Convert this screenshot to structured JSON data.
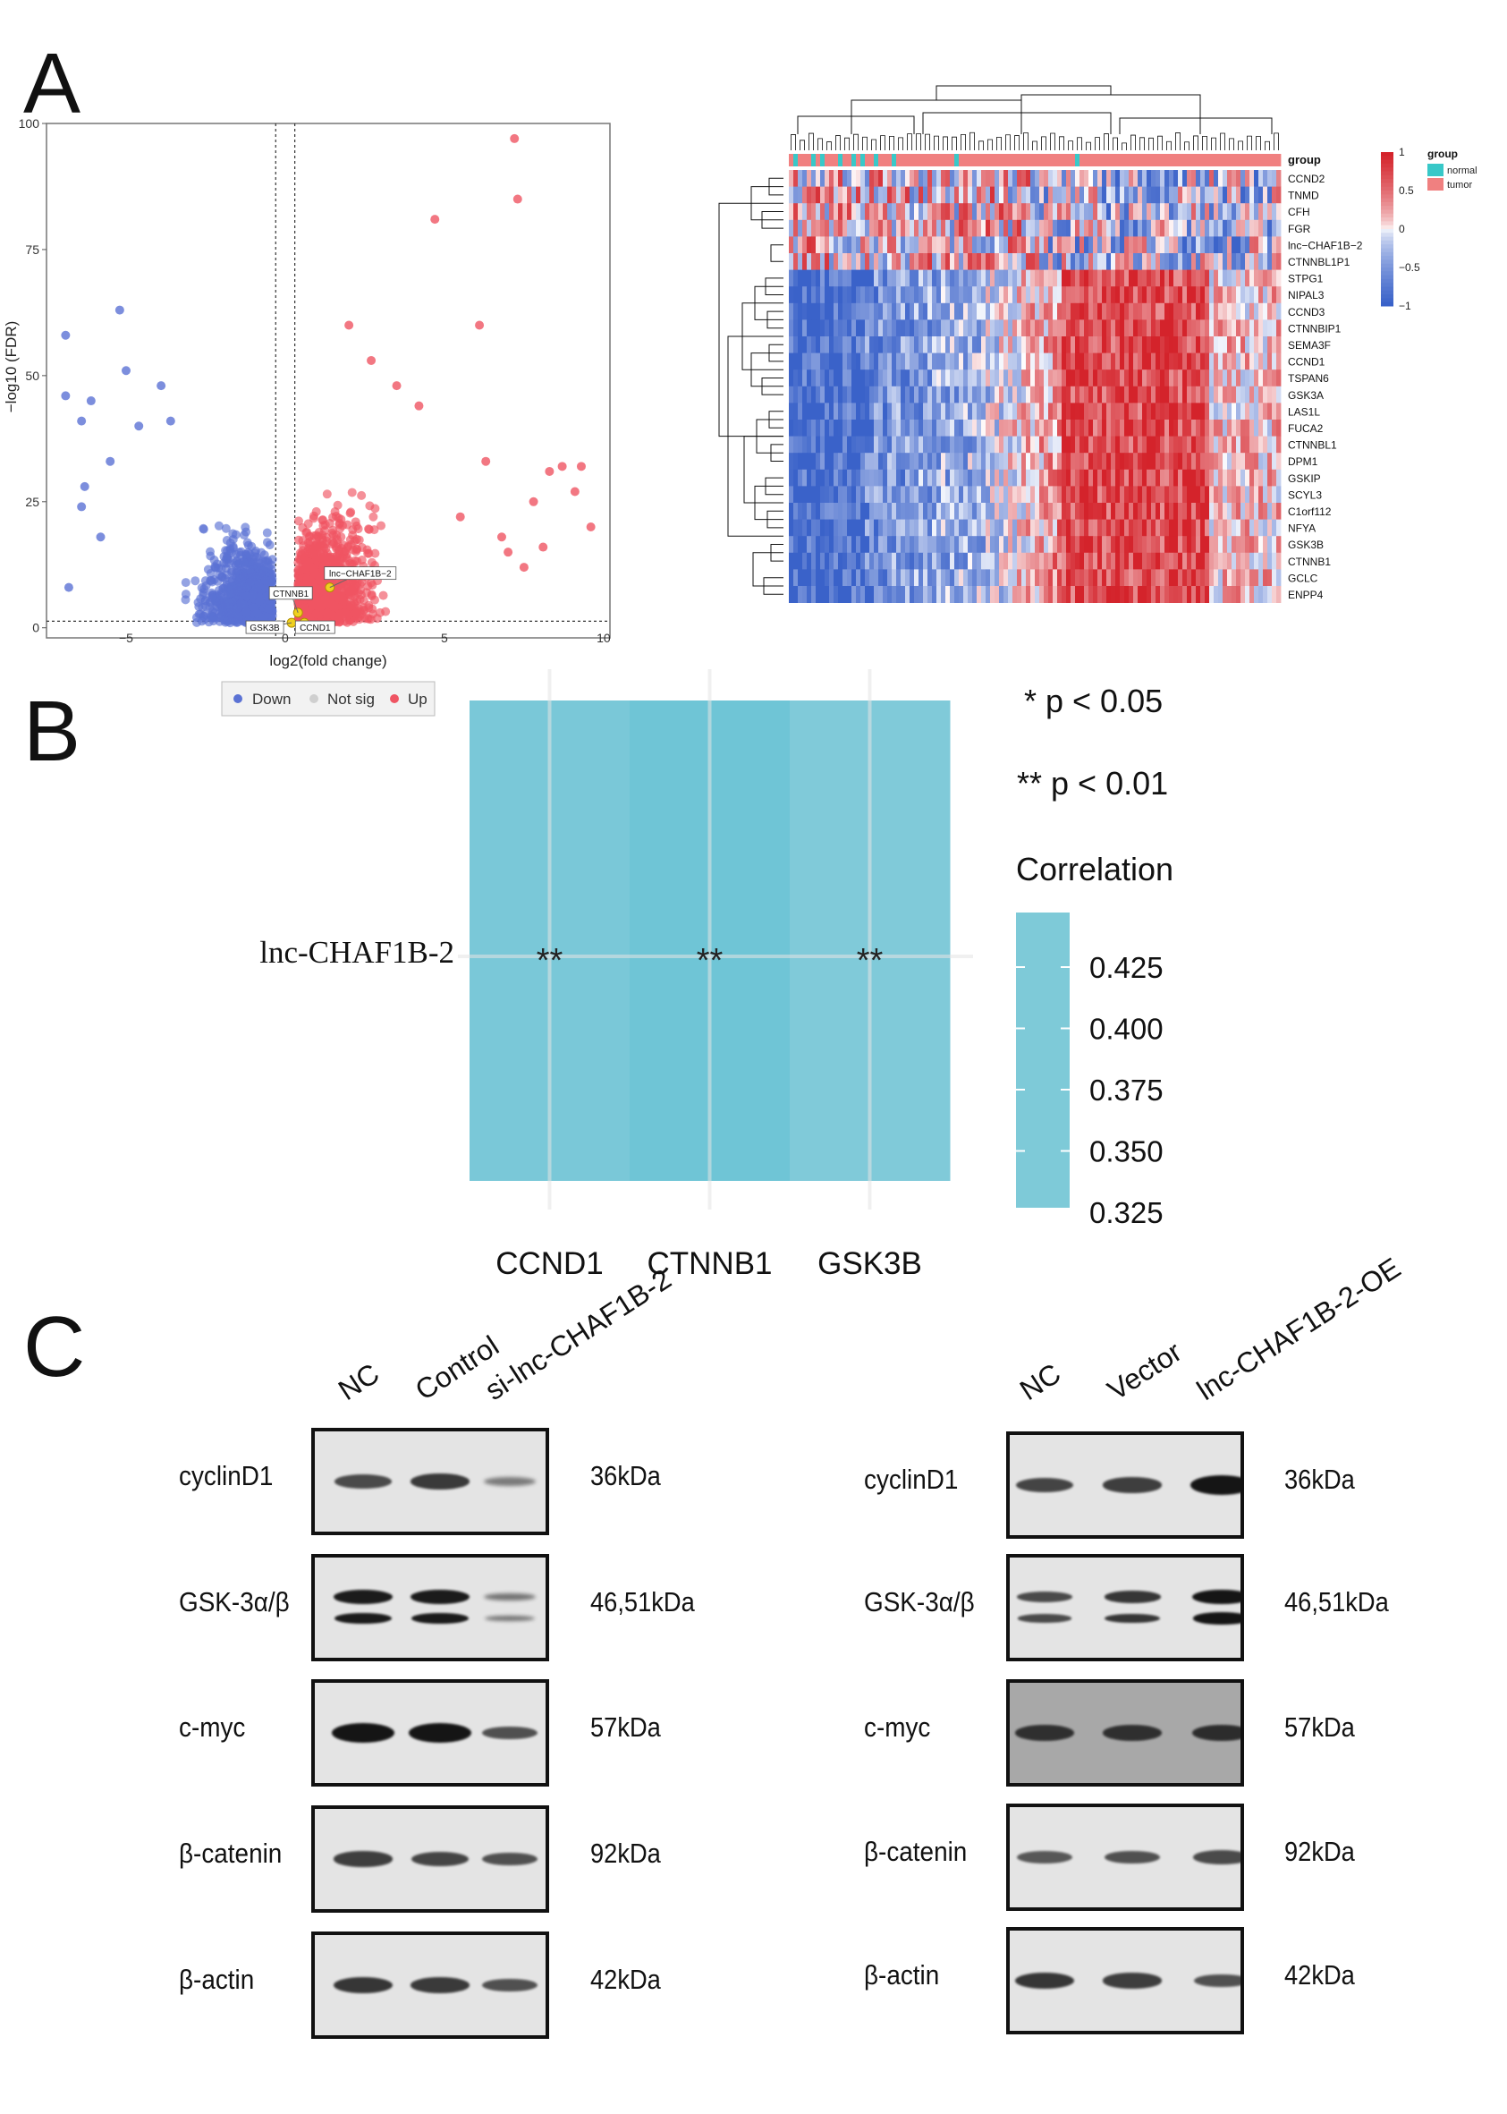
{
  "panels": {
    "a": "A",
    "b": "B",
    "c": "C"
  },
  "colors": {
    "down": "#5b72d4",
    "up": "#ef5563",
    "notsig": "#c8c8c8",
    "highlight": "#f0d020",
    "heat_low": "#3a62c9",
    "heat_mid": "#ffffff",
    "heat_high": "#d4232b",
    "normal": "#38c8c8",
    "tumor": "#f08080",
    "corr": "#7ecad8"
  },
  "chart_data": [
    {
      "type": "scatter",
      "name": "volcano",
      "title": "",
      "xlabel": "log2(fold change)",
      "ylabel": "−log10 (FDR)",
      "xlim": [
        -7.5,
        10.2
      ],
      "ylim": [
        -2,
        100
      ],
      "xticks": [
        -5,
        0,
        5,
        10
      ],
      "yticks": [
        0,
        25,
        50,
        75,
        100
      ],
      "vlines": [
        -0.3,
        0.3
      ],
      "hline": 1.3,
      "legend": {
        "position": "bottom",
        "items": [
          "Down",
          "Not sig",
          "Up"
        ]
      },
      "annotations": [
        {
          "label": "lnc−CHAF1B−2",
          "x": 1.4,
          "y": 8
        },
        {
          "label": "CTNNB1",
          "x": 0.4,
          "y": 3
        },
        {
          "label": "GSK3B",
          "x": 0.2,
          "y": 1
        },
        {
          "label": "CCND1",
          "x": 0.6,
          "y": 1
        }
      ],
      "up_outliers": [
        [
          7.2,
          97
        ],
        [
          7.3,
          85
        ],
        [
          4.7,
          81
        ],
        [
          6.1,
          60
        ],
        [
          2.0,
          60
        ],
        [
          8.7,
          32
        ],
        [
          9.3,
          32
        ],
        [
          8.3,
          31
        ],
        [
          9.1,
          27
        ],
        [
          9.6,
          20
        ],
        [
          8.1,
          16
        ],
        [
          7.0,
          15
        ],
        [
          7.5,
          12
        ],
        [
          6.8,
          18
        ],
        [
          5.5,
          22
        ],
        [
          6.3,
          33
        ],
        [
          7.8,
          25
        ],
        [
          3.5,
          48
        ],
        [
          4.2,
          44
        ],
        [
          2.7,
          53
        ]
      ],
      "down_outliers": [
        [
          -6.9,
          58
        ],
        [
          -5.2,
          63
        ],
        [
          -6.9,
          46
        ],
        [
          -6.1,
          45
        ],
        [
          -5.0,
          51
        ],
        [
          -3.9,
          48
        ],
        [
          -6.4,
          41
        ],
        [
          -4.6,
          40
        ],
        [
          -3.6,
          41
        ],
        [
          -5.5,
          33
        ],
        [
          -6.4,
          24
        ],
        [
          -6.8,
          8
        ],
        [
          -6.3,
          28
        ],
        [
          -5.8,
          18
        ]
      ]
    },
    {
      "type": "heatmap",
      "name": "expression-heatmap",
      "rows": [
        "CCND2",
        "TNMD",
        "CFH",
        "FGR",
        "lnc−CHAF1B−2",
        "CTNNBL1P1",
        "STPG1",
        "NIPAL3",
        "CCND3",
        "CTNNBIP1",
        "SEMA3F",
        "CCND1",
        "TSPAN6",
        "GSK3A",
        "LAS1L",
        "FUCA2",
        "CTNNBL1",
        "DPM1",
        "GSKIP",
        "SCYL3",
        "C1orf112",
        "NFYA",
        "GSK3B",
        "CTNNB1",
        "GCLC",
        "ENPP4"
      ],
      "color_scale": {
        "title": "",
        "ticks": [
          1,
          0.5,
          0,
          -0.5,
          -1
        ],
        "tick_labels": [
          "1",
          "0.5",
          "0",
          "−0.5",
          "−1"
        ]
      },
      "annotation_legend": {
        "title": "group",
        "items": [
          "normal",
          "tumor"
        ]
      },
      "annotation_track_label": "group"
    },
    {
      "type": "heatmap",
      "name": "correlation-heatmap",
      "row": "lnc-CHAF1B-2",
      "columns": [
        "CCND1",
        "CTNNB1",
        "GSK3B"
      ],
      "values": [
        0.39,
        0.43,
        0.37
      ],
      "marks": [
        "**",
        "**",
        "**"
      ],
      "legend_title": "Correlation",
      "legend_ticks": [
        "0.425",
        "0.400",
        "0.375",
        "0.350",
        "0.325"
      ],
      "significance": [
        "* p < 0.05",
        "** p < 0.01"
      ]
    }
  ],
  "blot_left": {
    "lanes": [
      "NC",
      "Control",
      "si-lnc-CHAF1B-2"
    ],
    "rows": [
      {
        "protein": "cyclinD1",
        "size": "36kDa",
        "bands": [
          0.6,
          0.72,
          0.25
        ]
      },
      {
        "protein": "GSK-3α/β",
        "size": "46,51kDa",
        "bands": [
          0.95,
          0.95,
          0.3
        ]
      },
      {
        "protein": "c-myc",
        "size": "57kDa",
        "bands": [
          1.0,
          1.0,
          0.55
        ]
      },
      {
        "protein": "β-catenin",
        "size": "92kDa",
        "bands": [
          0.7,
          0.65,
          0.55
        ]
      },
      {
        "protein": "β-actin",
        "size": "42kDa",
        "bands": [
          0.75,
          0.72,
          0.55
        ]
      }
    ]
  },
  "blot_right": {
    "lanes": [
      "NC",
      "Vector",
      "lnc-CHAF1B-2-OE"
    ],
    "rows": [
      {
        "protein": "cyclinD1",
        "size": "36kDa",
        "bands": [
          0.65,
          0.7,
          1.0
        ]
      },
      {
        "protein": "GSK-3α/β",
        "size": "46,51kDa",
        "bands": [
          0.6,
          0.75,
          1.0
        ]
      },
      {
        "protein": "c-myc",
        "size": "57kDa",
        "bands": [
          0.72,
          0.72,
          0.75
        ]
      },
      {
        "protein": "β-catenin",
        "size": "92kDa",
        "bands": [
          0.5,
          0.55,
          0.6
        ]
      },
      {
        "protein": "β-actin",
        "size": "42kDa",
        "bands": [
          0.75,
          0.7,
          0.55
        ]
      }
    ]
  }
}
